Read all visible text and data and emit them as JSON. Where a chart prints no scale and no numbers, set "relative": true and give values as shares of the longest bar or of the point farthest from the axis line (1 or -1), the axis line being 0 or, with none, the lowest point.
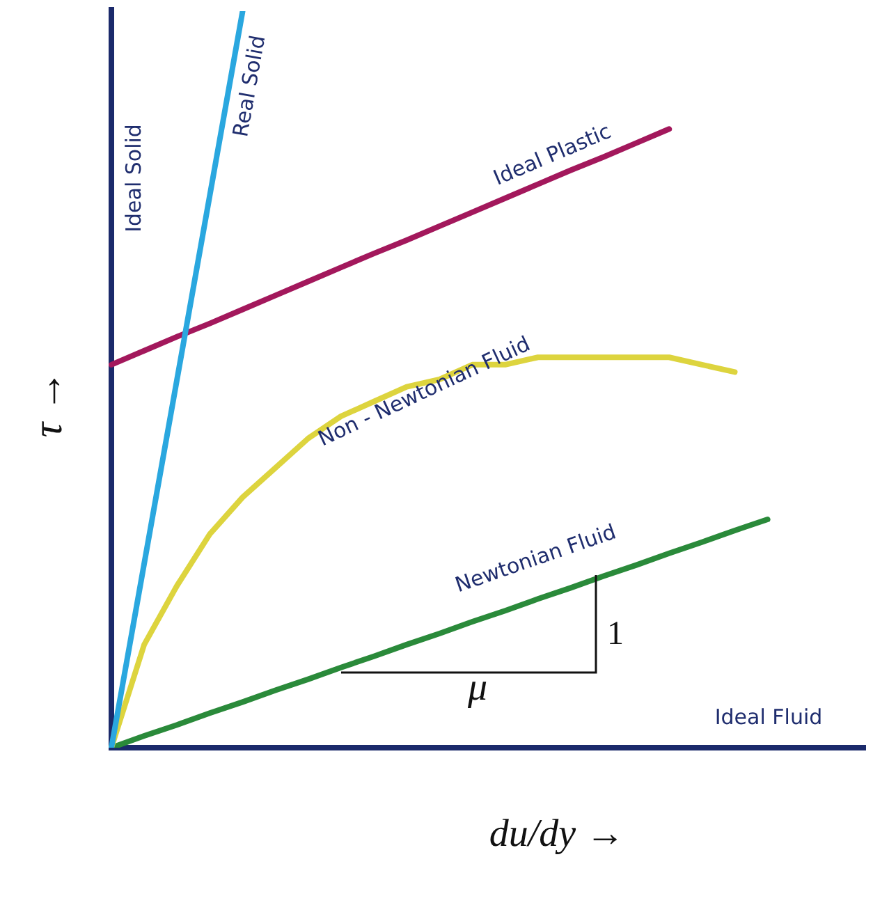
{
  "chart_data": {
    "type": "line",
    "relative": true,
    "marker": "none",
    "xlabel": "du/dy →",
    "ylabel": "τ →",
    "annotations": [
      "1",
      "μ",
      "Ideal Solid",
      "Ideal Fluid"
    ],
    "categories": [
      null,
      null,
      null,
      null,
      null,
      null,
      null,
      null,
      null,
      null,
      null,
      null,
      null,
      null,
      null,
      null,
      null,
      null,
      null,
      null,
      null,
      null,
      null,
      null
    ],
    "series": [
      {
        "name": "Real Solid",
        "color": "#2aa7df",
        "values": [
          0,
          0.25,
          0.5,
          0.75,
          1,
          null,
          null,
          null,
          null,
          null,
          null,
          null,
          null,
          null,
          null,
          null,
          null,
          null,
          null,
          null,
          null,
          null,
          null,
          null
        ]
      },
      {
        "name": "Ideal Plastic",
        "color": "#a3185c",
        "values": [
          0.52,
          0.539,
          0.558,
          0.576,
          0.595,
          0.614,
          0.633,
          0.652,
          0.671,
          0.689,
          0.708,
          0.727,
          0.746,
          0.765,
          0.784,
          0.802,
          0.821,
          0.84,
          null,
          null,
          null,
          null,
          null,
          null
        ]
      },
      {
        "name": "Non - Newtonian Fluid",
        "color": "#ddd43e",
        "values": [
          0,
          0.14,
          0.22,
          0.29,
          0.34,
          0.38,
          0.42,
          0.45,
          0.47,
          0.49,
          0.5,
          0.52,
          0.52,
          0.53,
          0.53,
          0.53,
          0.53,
          0.53,
          0.52,
          0.51,
          null,
          null,
          null,
          null
        ]
      },
      {
        "name": "Newtonian Fluid",
        "color": "#2a8a3a",
        "values": [
          0,
          0.016,
          0.031,
          0.047,
          0.062,
          0.078,
          0.093,
          0.109,
          0.124,
          0.14,
          0.155,
          0.171,
          0.186,
          0.202,
          0.217,
          0.233,
          0.248,
          0.264,
          0.279,
          0.295,
          0.31,
          null,
          null,
          null
        ]
      }
    ]
  }
}
